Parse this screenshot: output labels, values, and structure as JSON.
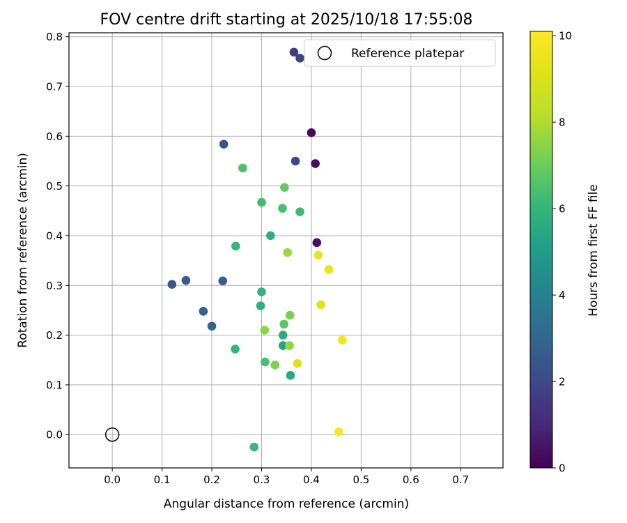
{
  "chart_data": {
    "type": "scatter",
    "title": "FOV centre drift starting at 2025/10/18 17:55:08",
    "xlabel": "Angular distance from reference (arcmin)",
    "ylabel": "Rotation from reference (arcmin)",
    "xlim": [
      -0.087,
      0.785
    ],
    "ylim": [
      -0.067,
      0.808
    ],
    "xticks": [
      0.0,
      0.1,
      0.2,
      0.3,
      0.4,
      0.5,
      0.6,
      0.7
    ],
    "yticks": [
      0.0,
      0.1,
      0.2,
      0.3,
      0.4,
      0.5,
      0.6,
      0.7,
      0.8
    ],
    "grid": true,
    "legend": {
      "position": "top-right",
      "entries": [
        "Reference platepar"
      ]
    },
    "reference_point": {
      "x": 0.0,
      "y": 0.0,
      "label": "Reference platepar"
    },
    "colorbar": {
      "label": "Hours from first FF file",
      "min": 0,
      "max": 10.1,
      "ticks": [
        0,
        2,
        4,
        6,
        8,
        10
      ],
      "colormap": "viridis"
    },
    "points": [
      {
        "x": 0.4,
        "y": 0.607,
        "hours": 0.2
      },
      {
        "x": 0.408,
        "y": 0.545,
        "hours": 0.3
      },
      {
        "x": 0.411,
        "y": 0.386,
        "hours": 0.4
      },
      {
        "x": 0.365,
        "y": 0.769,
        "hours": 1.7
      },
      {
        "x": 0.377,
        "y": 0.757,
        "hours": 1.9
      },
      {
        "x": 0.368,
        "y": 0.55,
        "hours": 2.0
      },
      {
        "x": 0.224,
        "y": 0.584,
        "hours": 2.4
      },
      {
        "x": 0.12,
        "y": 0.302,
        "hours": 2.5
      },
      {
        "x": 0.148,
        "y": 0.31,
        "hours": 2.6
      },
      {
        "x": 0.222,
        "y": 0.309,
        "hours": 2.7
      },
      {
        "x": 0.183,
        "y": 0.248,
        "hours": 2.8
      },
      {
        "x": 0.2,
        "y": 0.218,
        "hours": 2.9
      },
      {
        "x": 0.343,
        "y": 0.179,
        "hours": 5.3
      },
      {
        "x": 0.358,
        "y": 0.119,
        "hours": 5.5
      },
      {
        "x": 0.343,
        "y": 0.2,
        "hours": 5.6
      },
      {
        "x": 0.318,
        "y": 0.4,
        "hours": 5.7
      },
      {
        "x": 0.298,
        "y": 0.259,
        "hours": 5.8
      },
      {
        "x": 0.3,
        "y": 0.287,
        "hours": 5.9
      },
      {
        "x": 0.248,
        "y": 0.379,
        "hours": 6.0
      },
      {
        "x": 0.247,
        "y": 0.172,
        "hours": 6.0
      },
      {
        "x": 0.285,
        "y": -0.025,
        "hours": 6.1
      },
      {
        "x": 0.377,
        "y": 0.448,
        "hours": 6.2
      },
      {
        "x": 0.3,
        "y": 0.467,
        "hours": 6.3
      },
      {
        "x": 0.342,
        "y": 0.455,
        "hours": 6.4
      },
      {
        "x": 0.307,
        "y": 0.146,
        "hours": 6.4
      },
      {
        "x": 0.262,
        "y": 0.536,
        "hours": 6.5
      },
      {
        "x": 0.345,
        "y": 0.222,
        "hours": 6.7
      },
      {
        "x": 0.346,
        "y": 0.497,
        "hours": 6.9
      },
      {
        "x": 0.357,
        "y": 0.24,
        "hours": 7.2
      },
      {
        "x": 0.327,
        "y": 0.14,
        "hours": 7.3
      },
      {
        "x": 0.306,
        "y": 0.21,
        "hours": 7.5
      },
      {
        "x": 0.356,
        "y": 0.179,
        "hours": 7.6
      },
      {
        "x": 0.352,
        "y": 0.366,
        "hours": 7.7
      },
      {
        "x": 0.419,
        "y": 0.261,
        "hours": 9.1
      },
      {
        "x": 0.372,
        "y": 0.143,
        "hours": 9.2
      },
      {
        "x": 0.414,
        "y": 0.361,
        "hours": 9.4
      },
      {
        "x": 0.435,
        "y": 0.332,
        "hours": 9.5
      },
      {
        "x": 0.462,
        "y": 0.19,
        "hours": 9.8
      },
      {
        "x": 0.455,
        "y": 0.006,
        "hours": 10.0
      }
    ]
  }
}
